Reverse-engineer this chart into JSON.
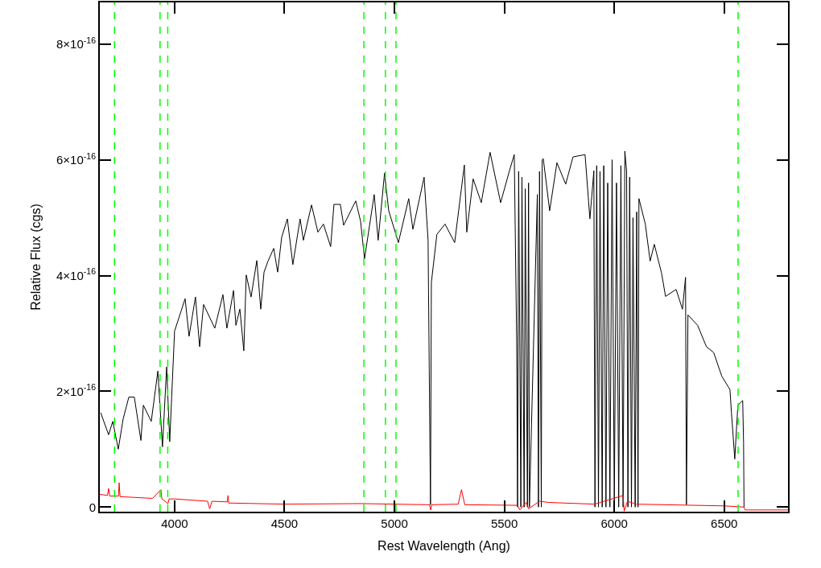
{
  "chart_data": {
    "type": "line",
    "xlabel": "Rest Wavelength (Ang)",
    "ylabel": "Relative Flux (cgs)",
    "xlim": [
      3660,
      6790
    ],
    "xticks": [
      4000,
      4500,
      5000,
      5500,
      6000,
      6500
    ],
    "ylim": [
      -8e-18,
      8.72e-16
    ],
    "yticks": [
      0,
      {
        "value": 2e-16,
        "label": "2×10$^{-16}$"
      },
      {
        "value": 4e-16,
        "label": "4×10$^{-16}$"
      },
      {
        "value": 6e-16,
        "label": "6×10$^{-16}$"
      },
      {
        "value": 8e-16,
        "label": "8×10$^{-16}$"
      }
    ],
    "line_style": "solid",
    "marker": "none",
    "series": [
      {
        "color": "#000000",
        "x": [
          3664,
          3700,
          3719,
          3744,
          3766,
          3792,
          3817,
          3847,
          3858,
          3894,
          3924,
          3945,
          3964,
          3978,
          4000,
          4048,
          4066,
          4095,
          4114,
          4132,
          4183,
          4220,
          4238,
          4268,
          4279,
          4297,
          4315,
          4326,
          4348,
          4374,
          4392,
          4407,
          4425,
          4451,
          4469,
          4487,
          4513,
          4538,
          4571,
          4586,
          4623,
          4652,
          4677,
          4710,
          4725,
          4754,
          4769,
          4824,
          4846,
          4864,
          4908,
          4926,
          4955,
          4974,
          5018,
          5065,
          5084,
          5135,
          5153,
          5164,
          5168,
          5193,
          5230,
          5274,
          5318,
          5329,
          5358,
          5395,
          5435,
          5483,
          5523,
          5545,
          5556,
          5560,
          5565,
          5575,
          5580,
          5590,
          5595,
          5605,
          5610,
          5614,
          5650,
          5655,
          5660,
          5668,
          5672,
          5677,
          5706,
          5739,
          5779,
          5812,
          5867,
          5889,
          5907,
          5912,
          5920,
          5928,
          5935,
          5945,
          5952,
          5962,
          5970,
          5980,
          5990,
          6000,
          6010,
          6020,
          6030,
          6040,
          6048,
          6056,
          6062,
          6070,
          6078,
          6085,
          6095,
          6102,
          6108,
          6112,
          6141,
          6163,
          6182,
          6215,
          6233,
          6281,
          6310,
          6324,
          6328,
          6335,
          6379,
          6419,
          6452,
          6489,
          6526,
          6533,
          6548,
          6562,
          6584,
          6588,
          6590
        ],
        "values": [
          1.63e-16,
          1.25e-16,
          1.48e-16,
          1e-16,
          1.52e-16,
          1.9e-16,
          1.9e-16,
          1.15e-16,
          1.76e-16,
          1.48e-16,
          2.35e-16,
          1.04e-16,
          2.42e-16,
          1.13e-16,
          3.04e-16,
          3.6e-16,
          2.95e-16,
          3.63e-16,
          2.77e-16,
          3.5e-16,
          3.09e-16,
          3.67e-16,
          3.09e-16,
          3.74e-16,
          3.14e-16,
          3.42e-16,
          2.7e-16,
          4.01e-16,
          3.63e-16,
          4.26e-16,
          3.42e-16,
          4.06e-16,
          4.25e-16,
          4.47e-16,
          4.06e-16,
          4.66e-16,
          4.98e-16,
          4.19e-16,
          4.98e-16,
          4.61e-16,
          5.22e-16,
          4.75e-16,
          4.89e-16,
          4.5e-16,
          5.23e-16,
          5.23e-16,
          4.87e-16,
          5.29e-16,
          4.94e-16,
          4.29e-16,
          5.4e-16,
          4.61e-16,
          5.77e-16,
          5.12e-16,
          4.57e-16,
          5.33e-16,
          4.8e-16,
          5.7e-16,
          4.61e-16,
          4e-18,
          3.88e-16,
          4.71e-16,
          4.89e-16,
          4.57e-16,
          5.91e-16,
          4.75e-16,
          5.67e-16,
          5.26e-16,
          6.13e-16,
          5.26e-16,
          5.81e-16,
          6.09e-16,
          2.88e-16,
          0,
          5.8e-16,
          0,
          5.7e-16,
          0,
          5.5e-16,
          0,
          5.6e-16,
          0,
          5.4e-16,
          0,
          5.8e-16,
          0,
          6e-16,
          6.02e-16,
          5.12e-16,
          5.95e-16,
          5.58e-16,
          6.05e-16,
          6.09e-16,
          4.98e-16,
          5.81e-16,
          0,
          5.9e-16,
          0,
          5.8e-16,
          0,
          5.9e-16,
          0,
          5.6e-16,
          0,
          6e-16,
          0,
          5.6e-16,
          0,
          5.9e-16,
          0,
          6.15e-16,
          5.8e-16,
          0,
          5.7e-16,
          0,
          5e-16,
          0,
          5.1e-16,
          0,
          5.33e-16,
          4.89e-16,
          4.25e-16,
          4.54e-16,
          4.04e-16,
          3.64e-16,
          3.76e-16,
          3.42e-16,
          3.97e-16,
          4e-18,
          3.32e-16,
          3.14e-16,
          2.77e-16,
          2.67e-16,
          2.26e-16,
          2.03e-16,
          1.62e-16,
          8.3e-17,
          1.76e-16,
          1.84e-16,
          1.11e-16,
          0
        ]
      },
      {
        "color": "#ff0000",
        "x": [
          3660,
          3695,
          3700,
          3705,
          3745,
          3748,
          3752,
          3900,
          3938,
          3942,
          3970,
          3975,
          4000,
          4150,
          4160,
          4170,
          4240,
          4243,
          4246,
          4500,
          4850,
          5000,
          5160,
          5165,
          5170,
          5290,
          5305,
          5320,
          5560,
          5570,
          5600,
          5610,
          5660,
          5700,
          5910,
          6040,
          6045,
          6060,
          6100,
          6500,
          6590,
          6595,
          6790
        ],
        "values": [
          2.2e-17,
          2e-17,
          3.2e-17,
          1.9e-17,
          1.9e-17,
          4.2e-17,
          1.8e-17,
          1.5e-17,
          3e-17,
          1.4e-17,
          6e-18,
          1.4e-17,
          1.4e-17,
          1e-17,
          -3e-18,
          1e-17,
          9e-18,
          2e-17,
          7e-18,
          5e-18,
          6e-18,
          5e-18,
          4e-18,
          -5e-18,
          4e-18,
          5e-18,
          3e-17,
          4e-18,
          3e-18,
          -5e-18,
          8e-18,
          -3e-18,
          1e-17,
          8e-18,
          5e-18,
          2e-17,
          -7e-18,
          1e-17,
          5e-18,
          2e-18,
          0.0,
          -5e-18,
          -5e-18
        ]
      }
    ],
    "ref_lines": [
      {
        "axis": "x",
        "value": 3727,
        "color": "#00ff00",
        "line_style": "dashed"
      },
      {
        "axis": "x",
        "value": 3934,
        "color": "#00ff00",
        "line_style": "dashed"
      },
      {
        "axis": "x",
        "value": 3969,
        "color": "#00ff00",
        "line_style": "dashed"
      },
      {
        "axis": "x",
        "value": 4861,
        "color": "#00ff00",
        "line_style": "dashed"
      },
      {
        "axis": "x",
        "value": 4959,
        "color": "#00ff00",
        "line_style": "dashed"
      },
      {
        "axis": "x",
        "value": 5007,
        "color": "#00ff00",
        "line_style": "dashed"
      },
      {
        "axis": "x",
        "value": 6563,
        "color": "#00ff00",
        "line_style": "dashed"
      }
    ]
  }
}
